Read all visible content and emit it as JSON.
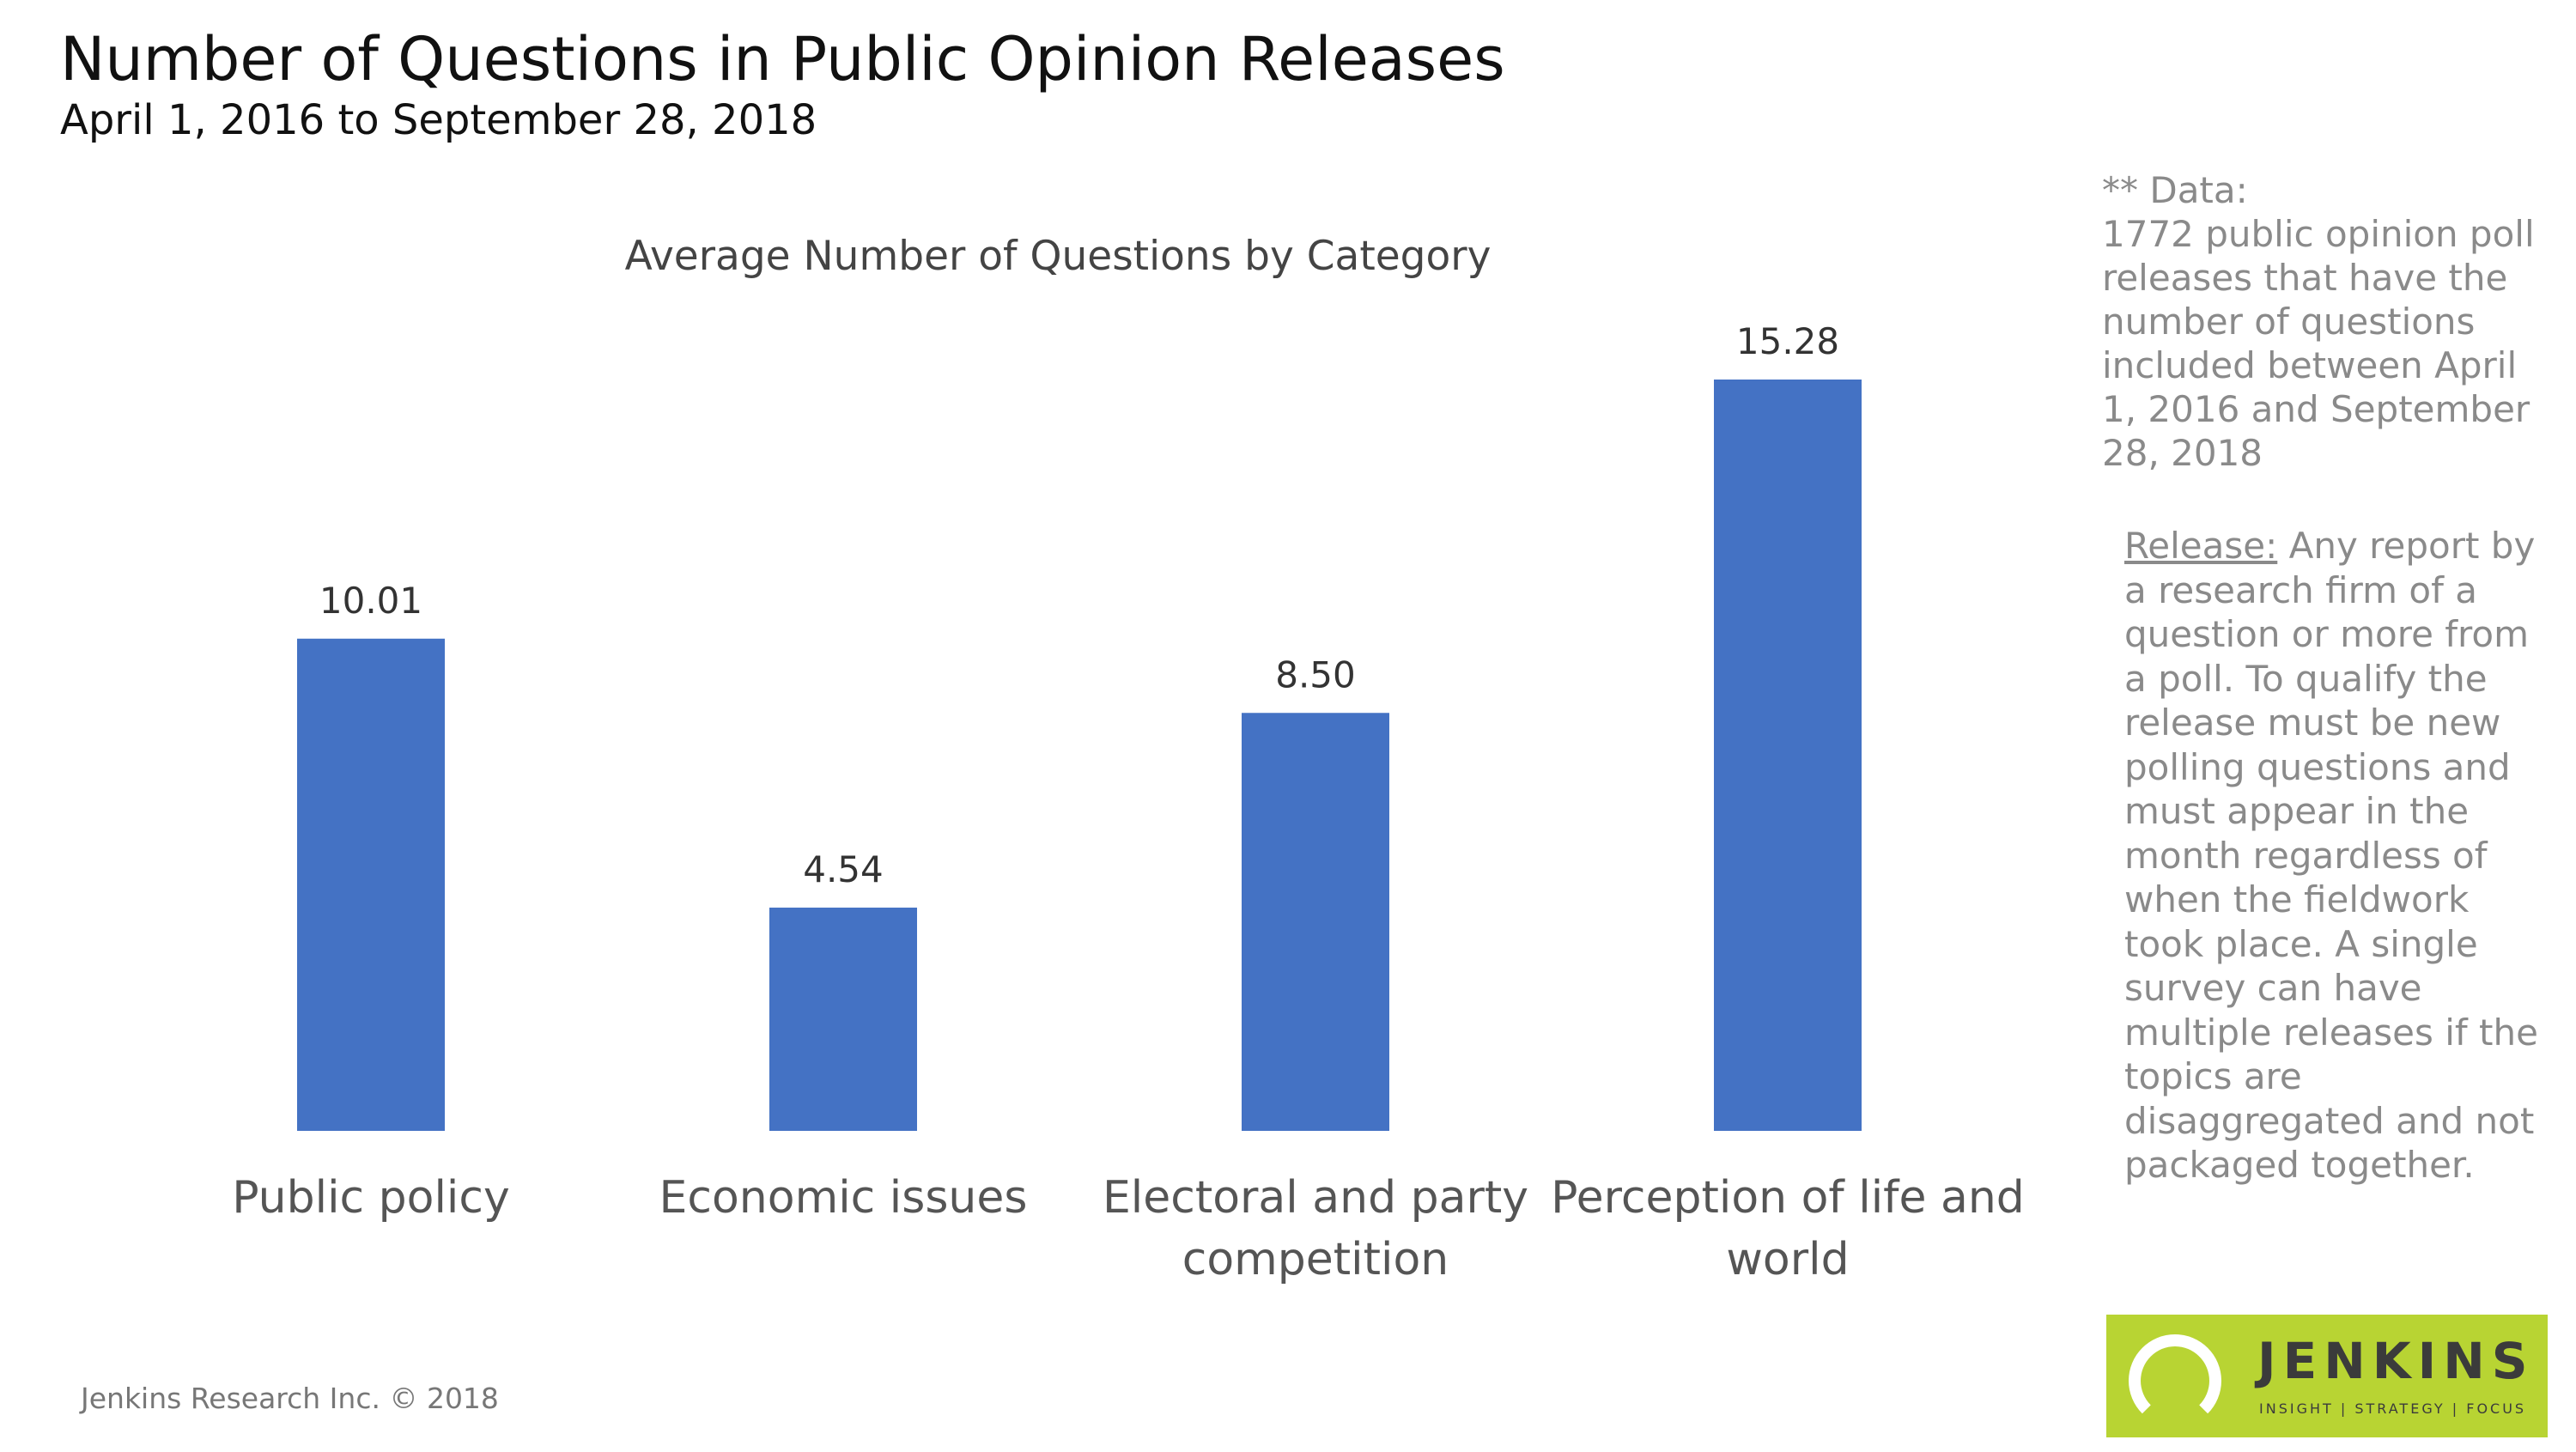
{
  "header": {
    "title": "Number of Questions in Public Opinion Releases",
    "subtitle": "April 1, 2016 to September  28, 2018"
  },
  "chart_data": {
    "type": "bar",
    "title": "Average Number of Questions by Category",
    "categories": [
      [
        "Public policy"
      ],
      [
        "Economic issues"
      ],
      [
        "Electoral and party",
        "competition"
      ],
      [
        "Perception of life and",
        "world"
      ]
    ],
    "values": [
      10.01,
      4.54,
      8.5,
      15.28
    ],
    "value_labels": [
      "10.01",
      "4.54",
      "8.50",
      "15.28"
    ],
    "xlabel": "",
    "ylabel": "",
    "ylim": [
      0,
      15.28
    ],
    "grid": false,
    "bar_color": "#4472C4"
  },
  "side_note": {
    "heading": "** Data:",
    "body": "1772 public opinion poll\nreleases that have the\nnumber of questions\nincluded between April\n1, 2016 and September\n28, 2018"
  },
  "release_definition": {
    "term": "Release:",
    "text": " Any report by a research firm of a question or more from a poll. To qualify the release must be new polling questions and must appear in the month regardless of when the fieldwork took place. A single survey can have multiple releases if the topics are disaggregated and not packaged together."
  },
  "footer": {
    "copyright": "Jenkins Research Inc. © 2018"
  },
  "logo": {
    "name": "JENKINS",
    "tagline": "INSIGHT | STRATEGY | FOCUS",
    "color": "#B8D433"
  }
}
